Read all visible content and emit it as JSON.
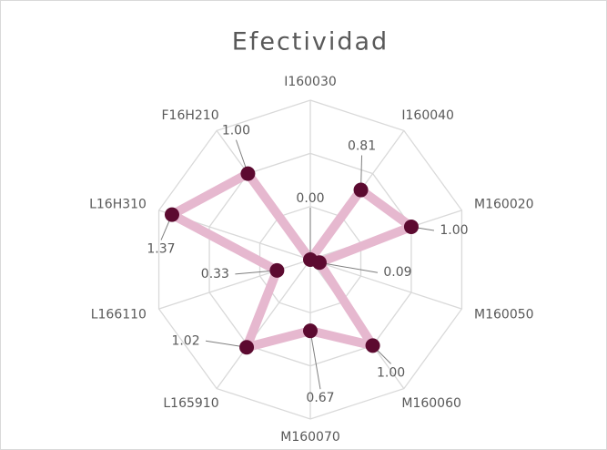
{
  "chart_data": {
    "type": "radar",
    "title": "Efectividad",
    "categories": [
      "I160030",
      "I160040",
      "M160020",
      "M160050",
      "M160060",
      "M160070",
      "L165910",
      "L166110",
      "L16H310",
      "F16H210"
    ],
    "series": [
      {
        "name": "Efectividad",
        "color": "#e6b8cf",
        "marker_color": "#5c0a30",
        "values": [
          0.0,
          0.81,
          1.0,
          0.09,
          1.0,
          0.67,
          1.02,
          0.33,
          1.37,
          1.0
        ],
        "value_labels": [
          "0.00",
          "0.81",
          "1.00",
          "0.09",
          "1.00",
          "0.67",
          "1.02",
          "0.33",
          "1.37",
          "1.00"
        ]
      }
    ],
    "rlim": [
      0,
      1.5
    ],
    "rticks": [
      0.5,
      1,
      1.5
    ],
    "grid": true
  }
}
